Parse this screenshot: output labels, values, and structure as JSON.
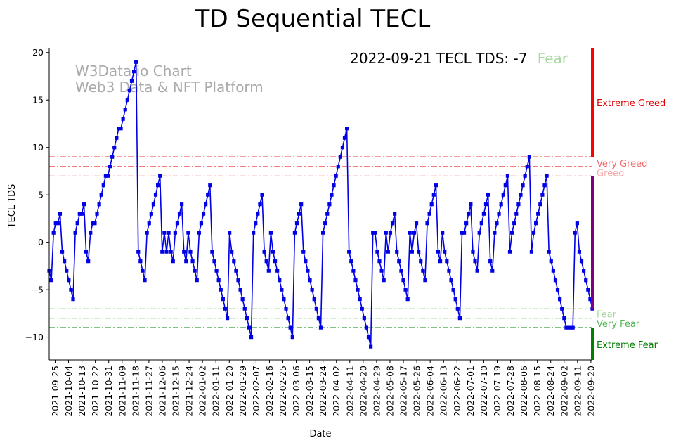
{
  "chart_data": {
    "type": "line",
    "title": "TD Sequential TECL",
    "xlabel": "Date",
    "ylabel": "TECL TDS",
    "ylim": [
      -12.4,
      20.5
    ],
    "yticks": [
      -10,
      -5,
      0,
      5,
      10,
      15,
      20
    ],
    "x_tick_labels": [
      "2021-09-25",
      "2021-10-04",
      "2021-10-13",
      "2021-10-22",
      "2021-10-31",
      "2021-11-09",
      "2021-11-18",
      "2021-11-27",
      "2021-12-06",
      "2021-12-15",
      "2021-12-24",
      "2022-01-02",
      "2022-01-11",
      "2022-01-20",
      "2022-01-29",
      "2022-02-07",
      "2022-02-16",
      "2022-02-25",
      "2022-03-06",
      "2022-03-15",
      "2022-03-24",
      "2022-04-02",
      "2022-04-11",
      "2022-04-20",
      "2022-04-29",
      "2022-05-08",
      "2022-05-17",
      "2022-05-26",
      "2022-06-04",
      "2022-06-13",
      "2022-06-22",
      "2022-07-01",
      "2022-07-10",
      "2022-07-19",
      "2022-07-28",
      "2022-08-06",
      "2022-08-15",
      "2022-08-24",
      "2022-09-02",
      "2022-09-11",
      "2022-09-20"
    ],
    "start_date": "2021-09-21",
    "end_date": "2022-09-21",
    "series": [
      {
        "name": "TECL TDS",
        "color": "#0000e6",
        "marker": "square",
        "points": [
          [
            0,
            -3
          ],
          [
            1,
            -4
          ],
          [
            2,
            1
          ],
          [
            3,
            2
          ],
          [
            4,
            2
          ],
          [
            5,
            3
          ],
          [
            6,
            -1
          ],
          [
            7,
            -2
          ],
          [
            8,
            -3
          ],
          [
            9,
            -4
          ],
          [
            10,
            -5
          ],
          [
            11,
            -6
          ],
          [
            12,
            1
          ],
          [
            13,
            2
          ],
          [
            14,
            3
          ],
          [
            15,
            3
          ],
          [
            16,
            4
          ],
          [
            17,
            -1
          ],
          [
            18,
            -2
          ],
          [
            19,
            1
          ],
          [
            20,
            2
          ],
          [
            21,
            2
          ],
          [
            22,
            3
          ],
          [
            23,
            4
          ],
          [
            24,
            5
          ],
          [
            25,
            6
          ],
          [
            26,
            7
          ],
          [
            27,
            7
          ],
          [
            28,
            8
          ],
          [
            29,
            9
          ],
          [
            30,
            10
          ],
          [
            31,
            11
          ],
          [
            32,
            12
          ],
          [
            33,
            12
          ],
          [
            34,
            13
          ],
          [
            35,
            14
          ],
          [
            36,
            15
          ],
          [
            37,
            16
          ],
          [
            38,
            17
          ],
          [
            39,
            18
          ],
          [
            40,
            19
          ],
          [
            41,
            -1
          ],
          [
            42,
            -2
          ],
          [
            43,
            -3
          ],
          [
            44,
            -4
          ],
          [
            45,
            1
          ],
          [
            46,
            2
          ],
          [
            47,
            3
          ],
          [
            48,
            4
          ],
          [
            49,
            5
          ],
          [
            50,
            6
          ],
          [
            51,
            7
          ],
          [
            52,
            -1
          ],
          [
            53,
            1
          ],
          [
            54,
            -1
          ],
          [
            55,
            1
          ],
          [
            56,
            -1
          ],
          [
            57,
            -2
          ],
          [
            58,
            1
          ],
          [
            59,
            2
          ],
          [
            60,
            3
          ],
          [
            61,
            4
          ],
          [
            62,
            -1
          ],
          [
            63,
            -2
          ],
          [
            64,
            1
          ],
          [
            65,
            -1
          ],
          [
            66,
            -2
          ],
          [
            67,
            -3
          ],
          [
            68,
            -4
          ],
          [
            69,
            1
          ],
          [
            70,
            2
          ],
          [
            71,
            3
          ],
          [
            72,
            4
          ],
          [
            73,
            5
          ],
          [
            74,
            6
          ],
          [
            75,
            -1
          ],
          [
            76,
            -2
          ],
          [
            77,
            -3
          ],
          [
            78,
            -4
          ],
          [
            79,
            -5
          ],
          [
            80,
            -6
          ],
          [
            81,
            -7
          ],
          [
            82,
            -8
          ],
          [
            83,
            1
          ],
          [
            84,
            -1
          ],
          [
            85,
            -2
          ],
          [
            86,
            -3
          ],
          [
            87,
            -4
          ],
          [
            88,
            -5
          ],
          [
            89,
            -6
          ],
          [
            90,
            -7
          ],
          [
            91,
            -8
          ],
          [
            92,
            -9
          ],
          [
            93,
            -10
          ],
          [
            94,
            1
          ],
          [
            95,
            2
          ],
          [
            96,
            3
          ],
          [
            97,
            4
          ],
          [
            98,
            5
          ],
          [
            99,
            -1
          ],
          [
            100,
            -2
          ],
          [
            101,
            -3
          ],
          [
            102,
            1
          ],
          [
            103,
            -1
          ],
          [
            104,
            -2
          ],
          [
            105,
            -3
          ],
          [
            106,
            -4
          ],
          [
            107,
            -5
          ],
          [
            108,
            -6
          ],
          [
            109,
            -7
          ],
          [
            110,
            -8
          ],
          [
            111,
            -9
          ],
          [
            112,
            -10
          ],
          [
            113,
            1
          ],
          [
            114,
            2
          ],
          [
            115,
            3
          ],
          [
            116,
            4
          ],
          [
            117,
            -1
          ],
          [
            118,
            -2
          ],
          [
            119,
            -3
          ],
          [
            120,
            -4
          ],
          [
            121,
            -5
          ],
          [
            122,
            -6
          ],
          [
            123,
            -7
          ],
          [
            124,
            -8
          ],
          [
            125,
            -9
          ],
          [
            126,
            1
          ],
          [
            127,
            2
          ],
          [
            128,
            3
          ],
          [
            129,
            4
          ],
          [
            130,
            5
          ],
          [
            131,
            6
          ],
          [
            132,
            7
          ],
          [
            133,
            8
          ],
          [
            134,
            9
          ],
          [
            135,
            10
          ],
          [
            136,
            11
          ],
          [
            137,
            12
          ],
          [
            138,
            -1
          ],
          [
            139,
            -2
          ],
          [
            140,
            -3
          ],
          [
            141,
            -4
          ],
          [
            142,
            -5
          ],
          [
            143,
            -6
          ],
          [
            144,
            -7
          ],
          [
            145,
            -8
          ],
          [
            146,
            -9
          ],
          [
            147,
            -10
          ],
          [
            148,
            -11
          ],
          [
            149,
            1
          ],
          [
            150,
            1
          ],
          [
            151,
            -1
          ],
          [
            152,
            -2
          ],
          [
            153,
            -3
          ],
          [
            154,
            -4
          ],
          [
            155,
            1
          ],
          [
            156,
            -1
          ],
          [
            157,
            1
          ],
          [
            158,
            2
          ],
          [
            159,
            3
          ],
          [
            160,
            -1
          ],
          [
            161,
            -2
          ],
          [
            162,
            -3
          ],
          [
            163,
            -4
          ],
          [
            164,
            -5
          ],
          [
            165,
            -6
          ],
          [
            166,
            1
          ],
          [
            167,
            -1
          ],
          [
            168,
            1
          ],
          [
            169,
            2
          ],
          [
            170,
            -1
          ],
          [
            171,
            -2
          ],
          [
            172,
            -3
          ],
          [
            173,
            -4
          ],
          [
            174,
            2
          ],
          [
            175,
            3
          ],
          [
            176,
            4
          ],
          [
            177,
            5
          ],
          [
            178,
            6
          ],
          [
            179,
            -1
          ],
          [
            180,
            -2
          ],
          [
            181,
            1
          ],
          [
            182,
            -1
          ],
          [
            183,
            -2
          ],
          [
            184,
            -3
          ],
          [
            185,
            -4
          ],
          [
            186,
            -5
          ],
          [
            187,
            -6
          ],
          [
            188,
            -7
          ],
          [
            189,
            -8
          ],
          [
            190,
            1
          ],
          [
            191,
            1
          ],
          [
            192,
            2
          ],
          [
            193,
            3
          ],
          [
            194,
            4
          ],
          [
            195,
            -1
          ],
          [
            196,
            -2
          ],
          [
            197,
            -3
          ],
          [
            198,
            1
          ],
          [
            199,
            2
          ],
          [
            200,
            3
          ],
          [
            201,
            4
          ],
          [
            202,
            5
          ],
          [
            203,
            -2
          ],
          [
            204,
            -3
          ],
          [
            205,
            1
          ],
          [
            206,
            2
          ],
          [
            207,
            3
          ],
          [
            208,
            4
          ],
          [
            209,
            5
          ],
          [
            210,
            6
          ],
          [
            211,
            7
          ],
          [
            212,
            -1
          ],
          [
            213,
            1
          ],
          [
            214,
            2
          ],
          [
            215,
            3
          ],
          [
            216,
            4
          ],
          [
            217,
            5
          ],
          [
            218,
            6
          ],
          [
            219,
            7
          ],
          [
            220,
            8
          ],
          [
            221,
            9
          ],
          [
            222,
            -1
          ],
          [
            223,
            1
          ],
          [
            224,
            2
          ],
          [
            225,
            3
          ],
          [
            226,
            4
          ],
          [
            227,
            5
          ],
          [
            228,
            6
          ],
          [
            229,
            7
          ],
          [
            230,
            -1
          ],
          [
            231,
            -2
          ],
          [
            232,
            -3
          ],
          [
            233,
            -4
          ],
          [
            234,
            -5
          ],
          [
            235,
            -6
          ],
          [
            236,
            -7
          ],
          [
            237,
            -8
          ],
          [
            238,
            -9
          ],
          [
            239,
            -9
          ],
          [
            240,
            -9
          ],
          [
            241,
            -9
          ],
          [
            242,
            1
          ],
          [
            243,
            2
          ],
          [
            244,
            -1
          ],
          [
            245,
            -2
          ],
          [
            246,
            -3
          ],
          [
            247,
            -4
          ],
          [
            248,
            -5
          ],
          [
            249,
            -6
          ],
          [
            250,
            -7
          ]
        ]
      }
    ],
    "reference_lines": [
      {
        "name": "extreme-greed-line",
        "y": 9,
        "color": "#e00000",
        "dash": "dashdot"
      },
      {
        "name": "very-greed-line",
        "y": 8,
        "color": "#f26a6a",
        "dash": "dashdot"
      },
      {
        "name": "greed-line",
        "y": 7,
        "color": "#f5a8a8",
        "dash": "dashdot"
      },
      {
        "name": "fear-line",
        "y": -7,
        "color": "#a8d8a0",
        "dash": "dashdot"
      },
      {
        "name": "very-fear-line",
        "y": -8,
        "color": "#55b455",
        "dash": "dashdot"
      },
      {
        "name": "extreme-fear-line",
        "y": -9,
        "color": "#008000",
        "dash": "dashdot"
      }
    ],
    "side_bands": [
      {
        "name": "extreme-greed-band",
        "from": 9,
        "to": 20.5,
        "color": "#ff0000"
      },
      {
        "name": "greed-band",
        "from": -7,
        "to": 7,
        "color": "#800080"
      },
      {
        "name": "extreme-fear-band",
        "from": -12.4,
        "to": -9,
        "color": "#008000"
      }
    ],
    "zone_labels": [
      {
        "name": "zone-label-extreme-greed",
        "text": "Extreme Greed",
        "y": 14.7,
        "color": "#e00000"
      },
      {
        "name": "zone-label-very-greed",
        "text": "Very Greed",
        "y": 8.3,
        "color": "#f26a6a"
      },
      {
        "name": "zone-label-greed",
        "text": "Greed",
        "y": 7.3,
        "color": "#f5a8a8"
      },
      {
        "name": "zone-label-fear",
        "text": "Fear",
        "y": -7.6,
        "color": "#a8d8a0"
      },
      {
        "name": "zone-label-very-fear",
        "text": "Very Fear",
        "y": -8.6,
        "color": "#55b455"
      },
      {
        "name": "zone-label-extreme-fear",
        "text": "Extreme Fear",
        "y": -10.8,
        "color": "#008000"
      }
    ],
    "watermark": [
      "W3Data.io Chart",
      "Web3 Data & NFT Platform"
    ],
    "annotation": {
      "text": "2022-09-21 TECL TDS: -7",
      "status": "Fear",
      "status_color": "#a8d8a0"
    }
  }
}
